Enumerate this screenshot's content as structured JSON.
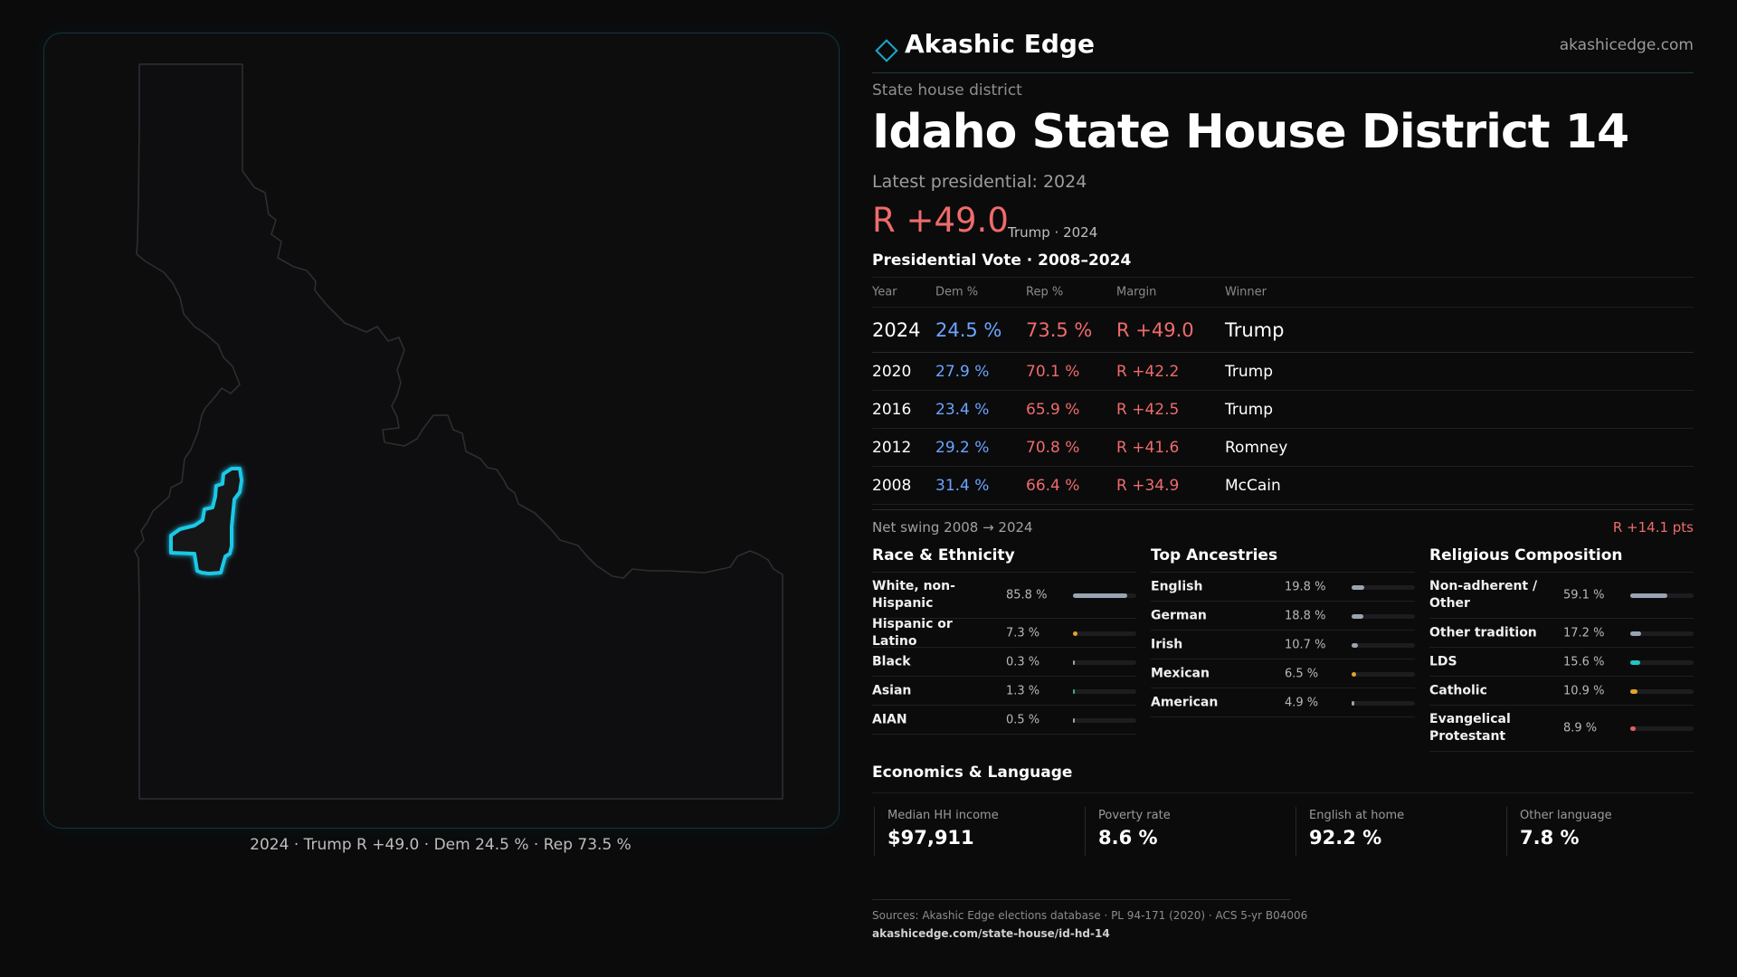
{
  "map": {
    "caption": "2024 · Trump R +49.0 · Dem 24.5 % · Rep 73.5 %"
  },
  "header": {
    "brand": "Akashic Edge",
    "url": "akashicedge.com",
    "kicker": "State house district",
    "title": "Idaho State House District 14",
    "latest_label": "Latest presidential: 2024",
    "margin": "R +49.0",
    "margin_sub": "Trump · 2024"
  },
  "presidential": {
    "title": "Presidential Vote · 2008–2024",
    "columns": [
      "Year",
      "Dem %",
      "Rep %",
      "Margin",
      "Winner"
    ],
    "rows": [
      {
        "year": "2024",
        "dem": "24.5 %",
        "rep": "73.5 %",
        "margin": "R +49.0",
        "winner": "Trump"
      },
      {
        "year": "2020",
        "dem": "27.9 %",
        "rep": "70.1 %",
        "margin": "R +42.2",
        "winner": "Trump"
      },
      {
        "year": "2016",
        "dem": "23.4 %",
        "rep": "65.9 %",
        "margin": "R +42.5",
        "winner": "Trump"
      },
      {
        "year": "2012",
        "dem": "29.2 %",
        "rep": "70.8 %",
        "margin": "R +41.6",
        "winner": "Romney"
      },
      {
        "year": "2008",
        "dem": "31.4 %",
        "rep": "66.4 %",
        "margin": "R +34.9",
        "winner": "McCain"
      }
    ],
    "swing_label": "Net swing 2008 → 2024",
    "swing_value": "R +14.1 pts"
  },
  "race": {
    "title": "Race & Ethnicity",
    "items": [
      {
        "label": "White, non-Hispanic",
        "value": "85.8 %",
        "share": 0.858,
        "color": "#9aa4b1"
      },
      {
        "label": "Hispanic or Latino",
        "value": "7.3 %",
        "share": 0.073,
        "color": "#e0a52a"
      },
      {
        "label": "Black",
        "value": "0.3 %",
        "share": 0.003,
        "color": "#9aa4b1"
      },
      {
        "label": "Asian",
        "value": "1.3 %",
        "share": 0.013,
        "color": "#35b67a"
      },
      {
        "label": "AIAN",
        "value": "0.5 %",
        "share": 0.005,
        "color": "#9aa4b1"
      }
    ]
  },
  "ancestry": {
    "title": "Top Ancestries",
    "items": [
      {
        "label": "English",
        "value": "19.8 %",
        "share": 0.198,
        "color": "#9aa4b1"
      },
      {
        "label": "German",
        "value": "18.8 %",
        "share": 0.188,
        "color": "#9aa4b1"
      },
      {
        "label": "Irish",
        "value": "10.7 %",
        "share": 0.107,
        "color": "#9aa4b1"
      },
      {
        "label": "Mexican",
        "value": "6.5 %",
        "share": 0.065,
        "color": "#e0a52a"
      },
      {
        "label": "American",
        "value": "4.9 %",
        "share": 0.049,
        "color": "#9aa4b1"
      }
    ]
  },
  "religion": {
    "title": "Religious Composition",
    "items": [
      {
        "label": "Non-adherent / Other",
        "value": "59.1 %",
        "share": 0.591,
        "color": "#9aa4b1"
      },
      {
        "label": "Other tradition",
        "value": "17.2 %",
        "share": 0.172,
        "color": "#9aa4b1"
      },
      {
        "label": "LDS",
        "value": "15.6 %",
        "share": 0.156,
        "color": "#22c4c4"
      },
      {
        "label": "Catholic",
        "value": "10.9 %",
        "share": 0.109,
        "color": "#e0a52a"
      },
      {
        "label": "Evangelical Protestant",
        "value": "8.9 %",
        "share": 0.089,
        "color": "#e06060"
      }
    ]
  },
  "economics": {
    "title": "Economics & Language",
    "items": [
      {
        "label": "Median HH income",
        "value": "$97,911"
      },
      {
        "label": "Poverty rate",
        "value": "8.6 %"
      },
      {
        "label": "English at home",
        "value": "92.2 %"
      },
      {
        "label": "Other language",
        "value": "7.8 %"
      }
    ]
  },
  "sources": {
    "line": "Sources: Akashic Edge elections database · PL 94-171 (2020) · ACS 5-yr B04006",
    "url": "akashicedge.com/state-house/id-hd-14"
  }
}
